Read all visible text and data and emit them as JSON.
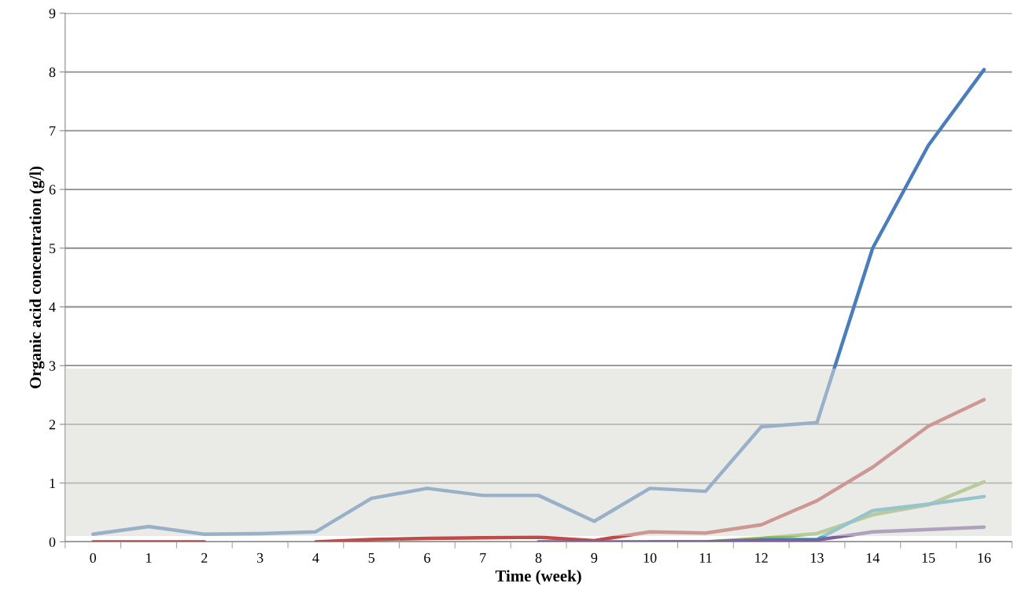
{
  "chart_data": {
    "type": "line",
    "xlabel": "Time (week)",
    "ylabel": "Organic acid concentration (g/l)",
    "categories": [
      "0",
      "1",
      "2",
      "3",
      "4",
      "5",
      "6",
      "7",
      "8",
      "9",
      "10",
      "11",
      "12",
      "13",
      "14",
      "15",
      "16"
    ],
    "series": [
      {
        "color": "#4a7ebb",
        "values": [
          0.13,
          0.26,
          0.13,
          0.14,
          0.17,
          0.74,
          0.91,
          0.79,
          0.79,
          0.35,
          0.91,
          0.86,
          1.96,
          2.03,
          5.0,
          6.75,
          8.04
        ]
      },
      {
        "color": "#be4b48",
        "values": [
          0,
          0,
          0,
          null,
          0,
          0.04,
          0.06,
          0.07,
          0.08,
          0.02,
          0.17,
          0.15,
          0.29,
          0.7,
          1.27,
          1.97,
          2.42
        ]
      },
      {
        "color": "#98b954",
        "values": [
          null,
          null,
          null,
          null,
          null,
          null,
          null,
          null,
          null,
          null,
          0,
          0,
          0.06,
          0.14,
          0.46,
          0.63,
          1.02
        ]
      },
      {
        "color": "#46aac5",
        "values": [
          null,
          null,
          null,
          null,
          null,
          null,
          null,
          null,
          null,
          null,
          null,
          null,
          0.04,
          0.04,
          0.53,
          0.64,
          0.77
        ]
      },
      {
        "color": "#7d60a0",
        "values": [
          null,
          null,
          null,
          null,
          null,
          null,
          null,
          null,
          0,
          0,
          0,
          0,
          0.03,
          0.03,
          0.17,
          0.21,
          0.25
        ]
      }
    ],
    "bands": [
      {
        "axis": "y",
        "from": 0.1,
        "to": 2.95,
        "color": "#d9d8d3"
      }
    ],
    "ylim": [
      0,
      9
    ],
    "yticks": [
      0,
      1,
      2,
      3,
      4,
      5,
      6,
      7,
      8,
      9
    ],
    "grid": "y",
    "legend": false,
    "line_style": "solid",
    "marker": "none"
  }
}
